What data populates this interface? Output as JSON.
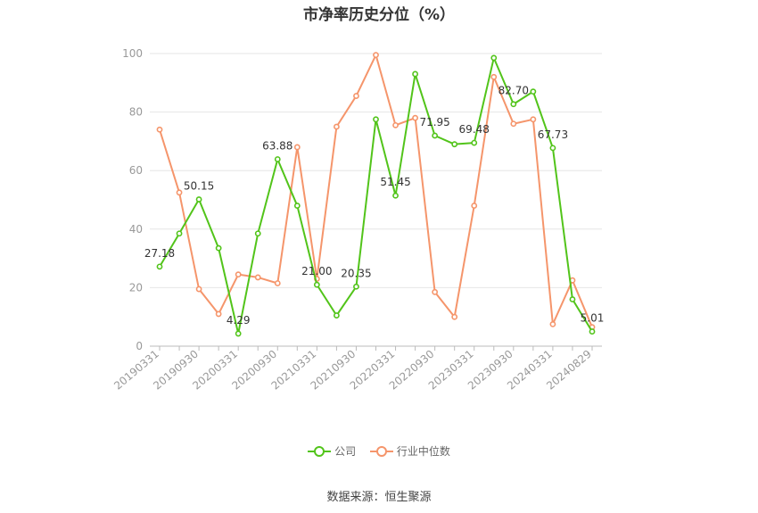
{
  "chart_data": {
    "type": "line",
    "title": "市净率历史分位（%）",
    "xlabel": "",
    "ylabel": "",
    "ylim": [
      0,
      100
    ],
    "yticks": [
      0,
      20,
      40,
      60,
      80,
      100
    ],
    "grid": true,
    "legend_position": "bottom",
    "categories": [
      "20190331",
      "20190630",
      "20190930",
      "20191231",
      "20200331",
      "20200630",
      "20200930",
      "20201231",
      "20210331",
      "20210630",
      "20210930",
      "20211231",
      "20220331",
      "20220630",
      "20220930",
      "20221231",
      "20230331",
      "20230630",
      "20230930",
      "20231231",
      "20240331",
      "20240630",
      "20240829"
    ],
    "x_tick_labels": [
      "20190331",
      "20190930",
      "20200331",
      "20200930",
      "20210331",
      "20210930",
      "20220331",
      "20220930",
      "20230331",
      "20230930",
      "20240331",
      "20240829"
    ],
    "series": [
      {
        "name": "公司",
        "color": "#52c41a",
        "values": [
          27.18,
          38.5,
          50.15,
          33.5,
          4.29,
          38.5,
          63.88,
          48.0,
          21.0,
          10.5,
          20.35,
          77.5,
          51.45,
          93.0,
          71.95,
          69.0,
          69.48,
          98.5,
          82.7,
          87.0,
          67.73,
          16.0,
          5.01
        ],
        "labels": [
          "27.18",
          "",
          "50.15",
          "",
          "4.29",
          "",
          "63.88",
          "",
          "21.00",
          "",
          "20.35",
          "",
          "51.45",
          "",
          "71.95",
          "",
          "69.48",
          "",
          "82.70",
          "",
          "67.73",
          "",
          "5.01"
        ]
      },
      {
        "name": "行业中位数",
        "color": "#f5956b",
        "values": [
          74.0,
          52.5,
          19.5,
          11.0,
          24.5,
          23.5,
          21.5,
          68.0,
          23.0,
          75.0,
          85.5,
          99.5,
          75.5,
          78.0,
          18.5,
          10.0,
          48.0,
          92.0,
          76.0,
          77.5,
          7.5,
          22.5,
          6.5
        ]
      }
    ]
  },
  "source_text": "数据来源：恒生聚源"
}
